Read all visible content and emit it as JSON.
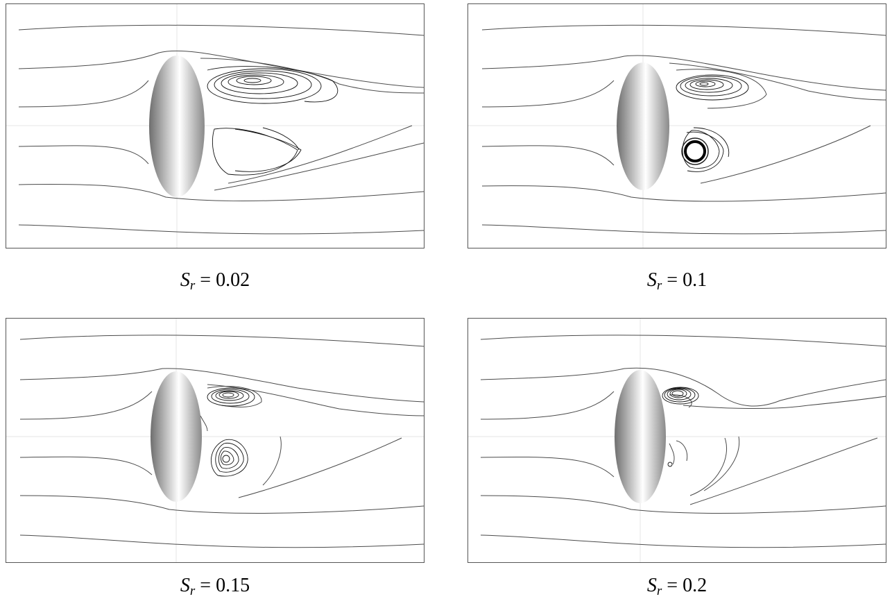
{
  "panels": [
    {
      "symbol": "S",
      "subscript": "r",
      "value": "= 0.02"
    },
    {
      "symbol": "S",
      "subscript": "r",
      "value": "= 0.1"
    },
    {
      "symbol": "S",
      "subscript": "r",
      "value": "= 0.15"
    },
    {
      "symbol": "S",
      "subscript": "r",
      "value": "= 0.2"
    }
  ],
  "colors": {
    "streamline": "#4a4a4a",
    "vortex": "#111111",
    "frame": "#555555",
    "body_dark": "#6e6e6e",
    "body_light": "#ffffff"
  }
}
